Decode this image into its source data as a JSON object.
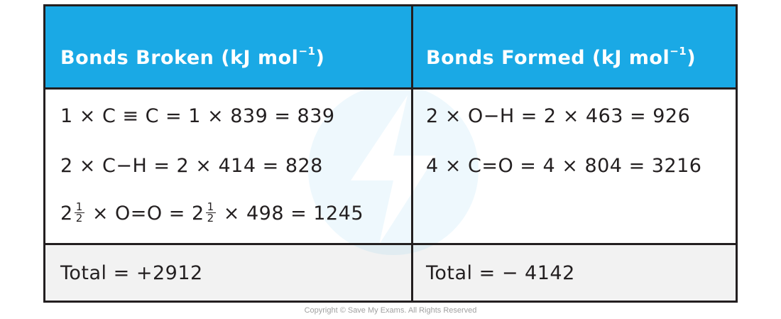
{
  "header": {
    "broken": {
      "base": "Bonds Broken (kJ mol",
      "sup": "−1",
      "close": ")"
    },
    "formed": {
      "base": "Bonds Formed (kJ mol",
      "sup": "−1",
      "close": ")"
    }
  },
  "broken": {
    "line1": "1 × C ≡ C = 1 × 839 = 839",
    "line2": "2 × C−H = 2 × 414 = 828",
    "line3": {
      "whole1": "2",
      "num": "1",
      "den": "2",
      "mid": " × O=O = 2",
      "tail": " × 498 = 1245"
    },
    "total": "Total = +2912"
  },
  "formed": {
    "line1": "2 × O−H = 2 × 463 = 926",
    "line2": "4 × C=O = 4 × 804 = 3216",
    "total": "Total = − 4142"
  },
  "footer": {
    "copyright": "Copyright © Save My Exams. All Rights Reserved"
  },
  "colors": {
    "header": "#1aa9e5",
    "footer": "#f2f2f2",
    "border": "#231f20"
  },
  "icons": {
    "watermark": "save-my-exams-logo-icon"
  }
}
